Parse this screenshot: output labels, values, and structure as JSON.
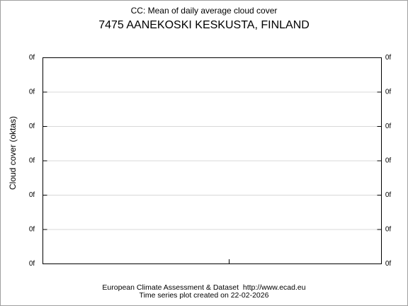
{
  "chart_data": {
    "type": "line",
    "title": "CC: Mean of daily average cloud cover",
    "subtitle": "7475 AANEKOSKI KESKUSTA, FINLAND",
    "y_label": "Cloud cover (oktas)",
    "footer": [
      "European Climate Assessment & Dataset  http://www.ecad.eu",
      "Time series plot created on 22-02-2026"
    ],
    "series": [],
    "ylim": [
      0,
      6
    ],
    "yticks": [
      {
        "value": 0,
        "label": "0f"
      },
      {
        "value": 1,
        "label": "0f"
      },
      {
        "value": 2,
        "label": "0f"
      },
      {
        "value": 3,
        "label": "0f"
      },
      {
        "value": 4,
        "label": "0f"
      },
      {
        "value": 5,
        "label": "0f"
      },
      {
        "value": 6,
        "label": "0f"
      }
    ],
    "y2lim": [
      0,
      6
    ],
    "y2ticks": [
      {
        "value": 0,
        "label": "0f"
      },
      {
        "value": 1,
        "label": "0f"
      },
      {
        "value": 2,
        "label": "0f"
      },
      {
        "value": 3,
        "label": "0f"
      },
      {
        "value": 4,
        "label": "0f"
      },
      {
        "value": 5,
        "label": "0f"
      },
      {
        "value": 6,
        "label": "0f"
      }
    ],
    "grid": true
  }
}
